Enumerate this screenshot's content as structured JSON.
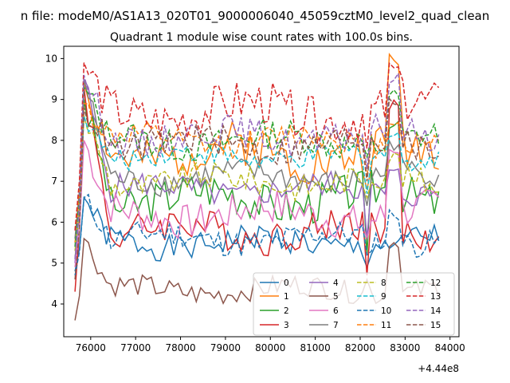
{
  "figure": {
    "suptitle": "n file: modeM0/AS1A13_020T01_9000006040_45059cztM0_level2_quad_clean"
  },
  "chart_data": {
    "type": "line",
    "title": "Quadrant 1 module wise count rates with 100.0s bins.",
    "xlabel": "",
    "ylabel": "",
    "x_offset_label": "+4.44e8",
    "xlim": [
      75400,
      84200
    ],
    "ylim": [
      3.2,
      10.3
    ],
    "xticks": [
      76000,
      77000,
      78000,
      79000,
      80000,
      81000,
      82000,
      83000,
      84000
    ],
    "xtick_labels": [
      "76000",
      "77000",
      "78000",
      "79000",
      "80000",
      "81000",
      "82000",
      "83000",
      "84000"
    ],
    "yticks": [
      4,
      5,
      6,
      7,
      8,
      9,
      10
    ],
    "ytick_labels": [
      "4",
      "5",
      "6",
      "7",
      "8",
      "9",
      "10"
    ],
    "grid": false,
    "legend_position": "bottom-right",
    "legend_columns": 4,
    "x_start": 75650,
    "x_step": 100,
    "n_points": 82,
    "series": [
      {
        "name": "0",
        "color": "#1f77b4",
        "dash": "solid",
        "base": 5.5,
        "amp": 0.3,
        "start": 4.8,
        "peak": 6.6,
        "dip": 4.9,
        "bump": 5.4,
        "seed": 1
      },
      {
        "name": "1",
        "color": "#ff7f0e",
        "dash": "solid",
        "base": 7.7,
        "amp": 0.5,
        "start": 5.5,
        "peak": 9.4,
        "dip": 6.8,
        "bump": 10.0,
        "seed": 2
      },
      {
        "name": "2",
        "color": "#2ca02c",
        "dash": "solid",
        "base": 6.6,
        "amp": 0.45,
        "start": 5.1,
        "peak": 9.0,
        "dip": 5.2,
        "bump": 8.5,
        "seed": 3
      },
      {
        "name": "3",
        "color": "#d62728",
        "dash": "solid",
        "base": 5.8,
        "amp": 0.4,
        "start": 4.3,
        "peak": 9.3,
        "dip": 4.7,
        "bump": 8.8,
        "seed": 4
      },
      {
        "name": "4",
        "color": "#9467bd",
        "dash": "solid",
        "base": 6.8,
        "amp": 0.3,
        "start": 5.0,
        "peak": 9.5,
        "dip": 5.6,
        "bump": 7.2,
        "seed": 5
      },
      {
        "name": "5",
        "color": "#8c564b",
        "dash": "solid",
        "base": 4.35,
        "amp": 0.25,
        "start": 3.6,
        "peak": 5.6,
        "dip": 4.6,
        "bump": 5.5,
        "seed": 6
      },
      {
        "name": "6",
        "color": "#e377c2",
        "dash": "solid",
        "base": 6.2,
        "amp": 0.4,
        "start": 4.9,
        "peak": 8.0,
        "dip": 5.6,
        "bump": 7.8,
        "seed": 7
      },
      {
        "name": "7",
        "color": "#7f7f7f",
        "dash": "solid",
        "base": 7.1,
        "amp": 0.3,
        "start": 5.6,
        "peak": 9.5,
        "dip": 6.4,
        "bump": 7.9,
        "seed": 8
      },
      {
        "name": "8",
        "color": "#bcbd22",
        "dash": "dashed",
        "base": 7.0,
        "amp": 0.3,
        "start": 5.3,
        "peak": 8.6,
        "dip": 6.6,
        "bump": 7.6,
        "seed": 9
      },
      {
        "name": "9",
        "color": "#17becf",
        "dash": "dashed",
        "base": 7.6,
        "amp": 0.25,
        "start": 5.4,
        "peak": 8.6,
        "dip": 6.7,
        "bump": 8.1,
        "seed": 10
      },
      {
        "name": "10",
        "color": "#1f77b4",
        "dash": "dashed",
        "base": 5.6,
        "amp": 0.3,
        "start": 4.7,
        "peak": 6.6,
        "dip": 5.2,
        "bump": 6.2,
        "seed": 11
      },
      {
        "name": "11",
        "color": "#ff7f0e",
        "dash": "dashed",
        "base": 8.0,
        "amp": 0.3,
        "start": 5.8,
        "peak": 8.9,
        "dip": 7.1,
        "bump": 8.5,
        "seed": 12
      },
      {
        "name": "12",
        "color": "#2ca02c",
        "dash": "dashed",
        "base": 8.0,
        "amp": 0.35,
        "start": 5.4,
        "peak": 9.3,
        "dip": 7.6,
        "bump": 9.1,
        "seed": 13
      },
      {
        "name": "13",
        "color": "#d62728",
        "dash": "dashed",
        "base": 8.7,
        "amp": 0.5,
        "start": 5.8,
        "peak": 9.9,
        "dip": 7.8,
        "bump": 9.7,
        "seed": 14
      },
      {
        "name": "14",
        "color": "#9467bd",
        "dash": "dashed",
        "base": 8.1,
        "amp": 0.35,
        "start": 5.1,
        "peak": 9.6,
        "dip": 7.3,
        "bump": 9.5,
        "seed": 15
      },
      {
        "name": "15",
        "color": "#8c564b",
        "dash": "dashed",
        "base": 7.9,
        "amp": 0.35,
        "start": 4.6,
        "peak": 8.8,
        "dip": 7.0,
        "bump": 9.0,
        "seed": 16
      }
    ]
  }
}
